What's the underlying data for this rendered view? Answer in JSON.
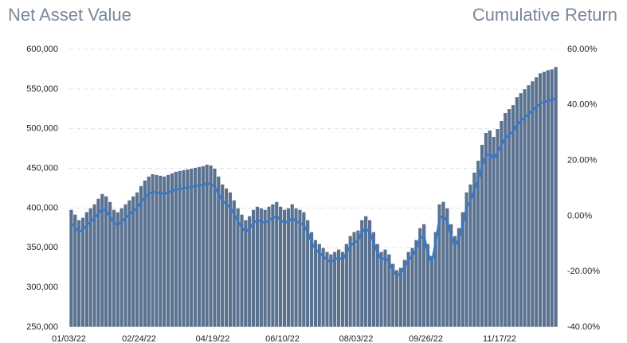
{
  "chart_data": {
    "type": "bar_line",
    "title": "Net Asset Value",
    "y2_title": "Cumulative Return",
    "categories": [
      "01/03/22",
      null,
      null,
      null,
      null,
      null,
      null,
      null,
      null,
      null,
      null,
      null,
      null,
      null,
      null,
      null,
      null,
      null,
      "02/24/22",
      null,
      null,
      null,
      null,
      null,
      null,
      null,
      null,
      null,
      null,
      null,
      null,
      null,
      null,
      null,
      null,
      null,
      null,
      "04/19/22",
      null,
      null,
      null,
      null,
      null,
      null,
      null,
      null,
      null,
      null,
      null,
      null,
      null,
      null,
      null,
      null,
      null,
      "06/10/22",
      null,
      null,
      null,
      null,
      null,
      null,
      null,
      null,
      null,
      null,
      null,
      null,
      null,
      null,
      null,
      null,
      null,
      null,
      "08/03/22",
      null,
      null,
      null,
      null,
      null,
      null,
      null,
      null,
      null,
      null,
      null,
      null,
      null,
      null,
      null,
      null,
      null,
      "09/26/22",
      null,
      null,
      null,
      null,
      null,
      null,
      null,
      null,
      null,
      null,
      null,
      null,
      null,
      null,
      null,
      null,
      null,
      null,
      "11/17/22",
      null,
      null,
      null,
      null,
      null,
      null,
      null,
      null,
      null,
      null,
      null,
      null,
      null,
      null
    ],
    "series": [
      {
        "name": "Net Asset Value",
        "color": "#5a7290",
        "values": [
          398000,
          392000,
          385000,
          388000,
          395000,
          400000,
          405000,
          412000,
          418000,
          415000,
          408000,
          398000,
          395000,
          400000,
          405000,
          410000,
          415000,
          420000,
          428000,
          435000,
          440000,
          443000,
          442000,
          441000,
          440000,
          442000,
          444000,
          446000,
          447000,
          448000,
          449000,
          450000,
          451000,
          452000,
          453000,
          455000,
          454000,
          450000,
          440000,
          430000,
          425000,
          420000,
          410000,
          400000,
          392000,
          385000,
          390000,
          398000,
          402000,
          400000,
          398000,
          402000,
          405000,
          408000,
          402000,
          398000,
          400000,
          405000,
          400000,
          398000,
          395000,
          385000,
          370000,
          360000,
          355000,
          350000,
          345000,
          342000,
          345000,
          348000,
          345000,
          355000,
          365000,
          370000,
          372000,
          385000,
          390000,
          385000,
          370000,
          355000,
          345000,
          348000,
          342000,
          330000,
          322000,
          325000,
          335000,
          345000,
          350000,
          360000,
          375000,
          380000,
          355000,
          340000,
          370000,
          405000,
          408000,
          400000,
          380000,
          365000,
          375000,
          395000,
          420000,
          430000,
          445000,
          460000,
          480000,
          495000,
          498000,
          490000,
          500000,
          510000,
          520000,
          525000,
          530000,
          540000,
          545000,
          550000,
          555000,
          560000,
          565000,
          570000,
          572000,
          574000,
          575000,
          578000
        ]
      },
      {
        "name": "Cumulative Return",
        "color": "#3a78c8",
        "axis": "y2",
        "values": [
          -2.5,
          -4,
          -5.75,
          -5,
          -3.25,
          -2,
          -0.75,
          1,
          2.5,
          1.75,
          0,
          -2.5,
          -3.25,
          -2,
          -0.75,
          0.5,
          1.75,
          3,
          5,
          6.75,
          8,
          8.75,
          8.5,
          8.25,
          8,
          8.5,
          9,
          9.5,
          9.75,
          10,
          10.25,
          10.5,
          10.75,
          11,
          11.25,
          11.75,
          11.5,
          10.5,
          8,
          5.5,
          4.25,
          3,
          0.5,
          -2,
          -4,
          -5.75,
          -4.5,
          -2.5,
          -1.5,
          -2,
          -2.5,
          -1.5,
          -0.75,
          0,
          -1.5,
          -2.5,
          -2,
          -0.75,
          -2,
          -2.5,
          -3.25,
          -5.75,
          -9.5,
          -12,
          -13.25,
          -14.5,
          -15.75,
          -16.5,
          -15.75,
          -15,
          -15.75,
          -13.25,
          -10.75,
          -9.5,
          -9,
          -5.75,
          -4.5,
          -5.75,
          -9.5,
          -13.25,
          -15.75,
          -15,
          -16.5,
          -19.5,
          -21.5,
          -20.75,
          -18.25,
          -15.75,
          -14.5,
          -12,
          -8.25,
          -7,
          -13.25,
          -17,
          -9.5,
          -0.75,
          0,
          -2,
          -7,
          -10.75,
          -8.25,
          -3.25,
          3,
          5.5,
          9.25,
          13,
          18,
          21.75,
          22.5,
          20.5,
          23,
          25.5,
          28,
          29.25,
          30.5,
          33,
          34.25,
          35.5,
          36.75,
          38,
          39.25,
          40.5,
          41,
          41.5,
          41.75,
          42.5
        ]
      }
    ],
    "ylim": [
      250000,
      600000
    ],
    "yticks": [
      {
        "value": 250000,
        "label": "250,000"
      },
      {
        "value": 300000,
        "label": "300,000"
      },
      {
        "value": 350000,
        "label": "350,000"
      },
      {
        "value": 400000,
        "label": "400,000"
      },
      {
        "value": 450000,
        "label": "450,000"
      },
      {
        "value": 500000,
        "label": "500,000"
      },
      {
        "value": 550000,
        "label": "550,000"
      },
      {
        "value": 600000,
        "label": "600,000"
      }
    ],
    "y2lim": [
      -40,
      60
    ],
    "y2ticks": [
      {
        "value": -40,
        "label": "-40.00%"
      },
      {
        "value": -20,
        "label": "-20.00%"
      },
      {
        "value": 0,
        "label": "0.00%"
      },
      {
        "value": 20,
        "label": "20.00%"
      },
      {
        "value": 40,
        "label": "40.00%"
      },
      {
        "value": 60,
        "label": "60.00%"
      }
    ],
    "grid": true
  }
}
